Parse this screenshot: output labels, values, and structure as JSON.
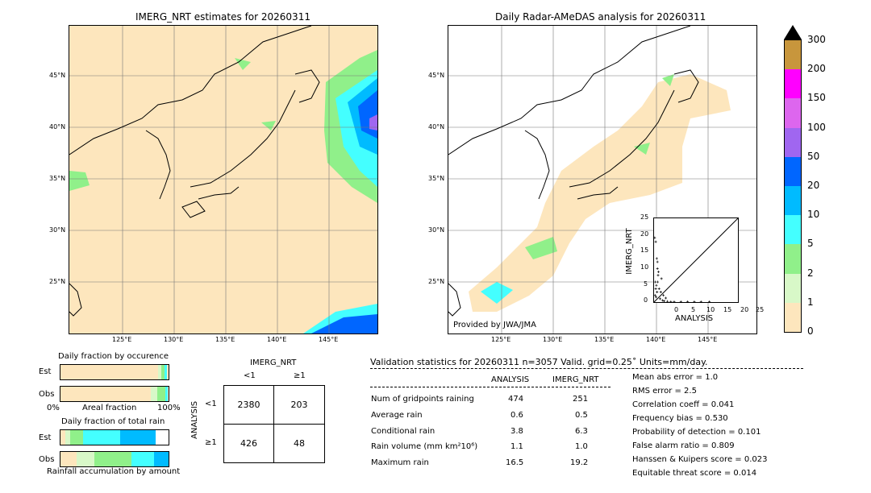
{
  "left_map": {
    "title": "IMERG_NRT estimates for 20260311",
    "lat_labels": [
      "45°N",
      "40°N",
      "35°N",
      "30°N",
      "25°N"
    ],
    "lon_labels": [
      "125°E",
      "130°E",
      "135°E",
      "140°E",
      "145°E"
    ]
  },
  "right_map": {
    "title": "Daily Radar-AMeDAS analysis for 20260311",
    "lat_labels": [
      "45°N",
      "40°N",
      "35°N",
      "30°N",
      "25°N"
    ],
    "lon_labels": [
      "125°E",
      "130°E",
      "135°E",
      "140°E",
      "145°E"
    ],
    "credit": "Provided by JWA/JMA"
  },
  "colorbar": {
    "ticks": [
      "300",
      "200",
      "150",
      "100",
      "50",
      "20",
      "10",
      "5",
      "2",
      "1",
      "0"
    ],
    "colors": [
      "#c8963c",
      "#ff00ff",
      "#dd66ee",
      "#a066f0",
      "#0066ff",
      "#00bbff",
      "#44ffff",
      "#90f08a",
      "#d8f8c8",
      "#fde6bd"
    ]
  },
  "scatter": {
    "ylabel": "IMERG_NRT",
    "xlabel": "ANALYSIS",
    "ticks": [
      "0",
      "5",
      "10",
      "15",
      "20",
      "25"
    ],
    "range": [
      0,
      25
    ]
  },
  "occurrence": {
    "title": "Daily fraction by occurence",
    "rows": [
      "Est",
      "Obs"
    ],
    "axis_left": "0%",
    "axis_mid": "Areal fraction",
    "axis_right": "100%"
  },
  "total_rain": {
    "title": "Daily fraction of total rain",
    "rows": [
      "Est",
      "Obs"
    ],
    "footer": "Rainfall accumulation by amount"
  },
  "contingency": {
    "header": "IMERG_NRT",
    "col_labels": [
      "<1",
      "≥1"
    ],
    "row_axis": "ANALYSIS",
    "row_labels": [
      "<1",
      "≥1"
    ],
    "cells": [
      [
        "2380",
        "203"
      ],
      [
        "426",
        "48"
      ]
    ]
  },
  "validation": {
    "header": "Validation statistics for 20260311  n=3057 Valid. grid=0.25˚ Units=mm/day.",
    "col_analysis": "ANALYSIS",
    "col_imerg": "IMERG_NRT",
    "rows": [
      {
        "label": "Num of gridpoints raining",
        "analysis": "474",
        "imerg": "251"
      },
      {
        "label": "Average rain",
        "analysis": "0.6",
        "imerg": "0.5"
      },
      {
        "label": "Conditional rain",
        "analysis": "3.8",
        "imerg": "6.3"
      },
      {
        "label": "Rain volume (mm km²10⁶)",
        "analysis": "1.1",
        "imerg": "1.0"
      },
      {
        "label": "Maximum rain",
        "analysis": "16.5",
        "imerg": "19.2"
      }
    ],
    "scores": [
      "Mean abs error =    1.0",
      "RMS error =    2.5",
      "Correlation coeff =  0.041",
      "Frequency bias =  0.530",
      "Probability of detection =  0.101",
      "False alarm ratio =  0.809",
      "Hanssen & Kuipers score =  0.023",
      "Equitable threat score =  0.014"
    ]
  }
}
